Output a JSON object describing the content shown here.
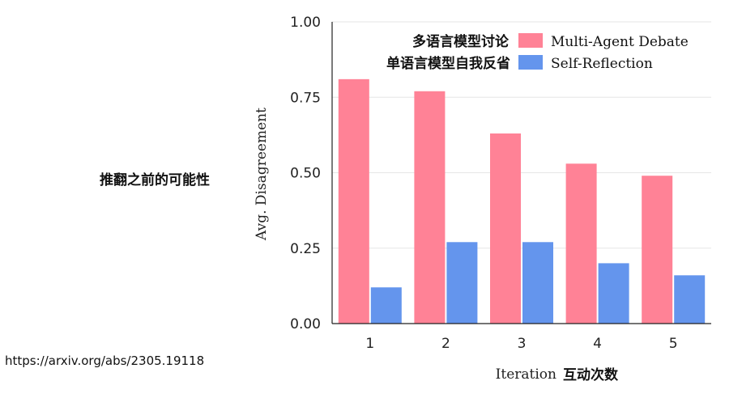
{
  "annotations": {
    "side_label": "推翻之前的可能性",
    "source_url": "https://arxiv.org/abs/2305.19118",
    "legend_note_debate": "多语言模型讨论",
    "legend_note_reflection": "单语言模型自我反省",
    "xlabel_note": "互动次数"
  },
  "chart_data": {
    "type": "bar",
    "categories": [
      "1",
      "2",
      "3",
      "4",
      "5"
    ],
    "series": [
      {
        "name": "Multi-Agent Debate",
        "values": [
          0.81,
          0.77,
          0.63,
          0.53,
          0.49
        ],
        "color": "#ff8296"
      },
      {
        "name": "Self-Reflection",
        "values": [
          0.12,
          0.27,
          0.27,
          0.2,
          0.16
        ],
        "color": "#6495ed"
      }
    ],
    "xlabel": "Iteration",
    "ylabel": "Avg. Disagreement",
    "ylim": [
      0,
      1
    ],
    "yticks": [
      "0.00",
      "0.25",
      "0.50",
      "0.75",
      "1.00"
    ],
    "grid": true,
    "legend_position": "top-right"
  }
}
